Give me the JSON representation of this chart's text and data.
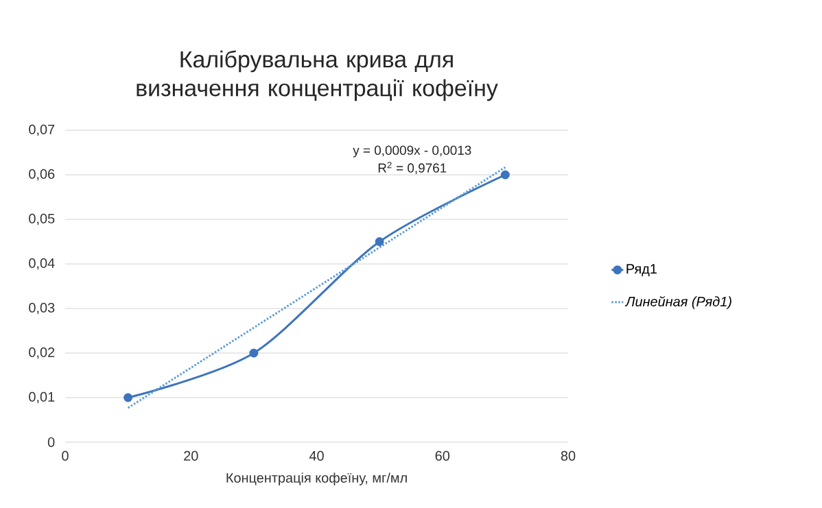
{
  "chart_data": {
    "type": "line",
    "title": "Калібрувальна крива для визначення концентрації кофеїну",
    "xlabel": "Концентрація кофеїну, мг/мл",
    "series": [
      {
        "name": "Ряд1",
        "color": "#3d74bd",
        "x": [
          10,
          30,
          50,
          70
        ],
        "values": [
          0.01,
          0.02,
          0.045,
          0.06
        ],
        "marker": "circle",
        "line_style": "solid"
      },
      {
        "name": "Линейная (Ряд1)",
        "color": "#5b9bd5",
        "x": [
          10,
          70
        ],
        "values": [
          0.0077,
          0.0617
        ],
        "marker": "none",
        "line_style": "dotted"
      }
    ],
    "annotations": [
      "y = 0,0009x - 0,0013",
      "R$^{2}$ = 0,9761"
    ],
    "xlim": [
      0,
      80
    ],
    "xticks": [
      0,
      20,
      40,
      60,
      80
    ],
    "ylim": [
      0,
      0.07
    ],
    "yticks": [
      0,
      {
        "value": 0.01,
        "label": "0,01"
      },
      {
        "value": 0.02,
        "label": "0,02"
      },
      {
        "value": 0.03,
        "label": "0,03"
      },
      {
        "value": 0.04,
        "label": "0,04"
      },
      {
        "value": 0.05,
        "label": "0,05"
      },
      {
        "value": 0.06,
        "label": "0,06"
      },
      {
        "value": 0.07,
        "label": "0,07"
      }
    ],
    "grid": "y",
    "legend": "right"
  }
}
